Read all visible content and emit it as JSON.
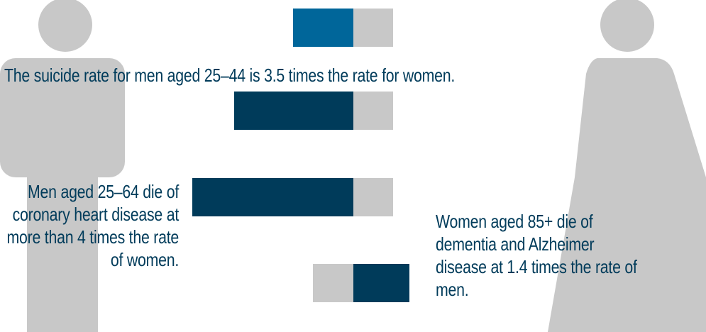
{
  "colors": {
    "silhouette": "#c8c8c8",
    "accent_blue": "#00669a",
    "dark_navy": "#003b5a",
    "remainder_gray": "#c8c8c8",
    "text": "#003b5a"
  },
  "captions": {
    "suicide": "The suicide rate for men aged 25–44 is 3.5 times the rate for women.",
    "chd": "Men aged 25–64 die of coronary heart disease at more than 4 times the rate of women.",
    "dementia": "Women aged 85+ die of dementia and Alzheimer disease at 1.4 times the rate of men."
  },
  "chart_data": {
    "type": "bar",
    "orientation": "horizontal",
    "description_of_encoding": "Bars show relative rates, with each bar split into a darker segment (higher group) and a gray segment (comparison group); segments are diverging from a common baseline.",
    "bars": [
      {
        "name": "",
        "male_share": 0.5,
        "female_share": 0.5,
        "highlight": "male",
        "color": "#00669a"
      },
      {
        "name": "",
        "male_share": 0.778,
        "female_share": 0.222,
        "highlight": "male",
        "color": "#003b5a"
      },
      {
        "name": "",
        "male_share": 0.8,
        "female_share": 0.2,
        "highlight": "male",
        "color": "#003b5a"
      },
      {
        "name": "",
        "male_share": 0.417,
        "female_share": 0.583,
        "highlight": "female",
        "color": "#003b5a"
      }
    ],
    "values": [
      1.0,
      3.5,
      4.0,
      1.4
    ]
  }
}
